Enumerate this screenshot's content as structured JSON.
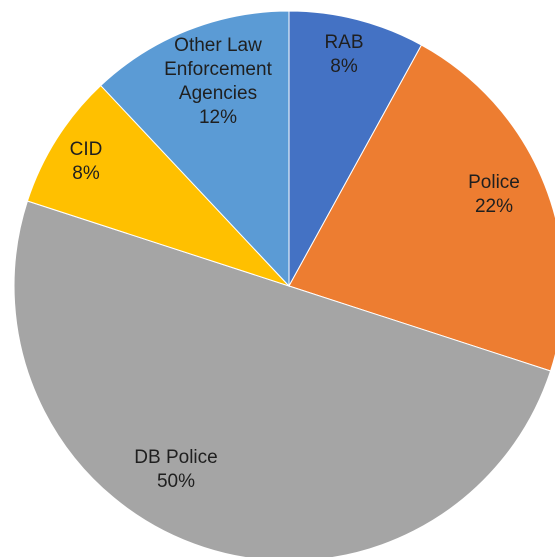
{
  "chart_data": {
    "type": "pie",
    "categories": [
      "RAB",
      "Police",
      "DB Police",
      "CID",
      "Other Law Enforcement Agencies"
    ],
    "values": [
      8,
      22,
      50,
      8,
      12
    ],
    "labels": [
      {
        "lines": [
          "RAB",
          "8%"
        ],
        "color": "#1f1f1f"
      },
      {
        "lines": [
          "Police",
          "22%"
        ],
        "color": "#1f1f1f"
      },
      {
        "lines": [
          "DB Police",
          "50%"
        ],
        "color": "#1f1f1f"
      },
      {
        "lines": [
          "CID",
          "8%"
        ],
        "color": "#1f1f1f"
      },
      {
        "lines": [
          "Other Law",
          "Enforcement",
          "Agencies",
          "12%"
        ],
        "color": "#1f1f1f"
      }
    ],
    "colors": [
      "#4472c4",
      "#ed7d31",
      "#a5a5a5",
      "#ffc000",
      "#5b9bd5"
    ],
    "title": "",
    "legend": "none",
    "start_angle": "12 o'clock",
    "direction": "clockwise"
  }
}
